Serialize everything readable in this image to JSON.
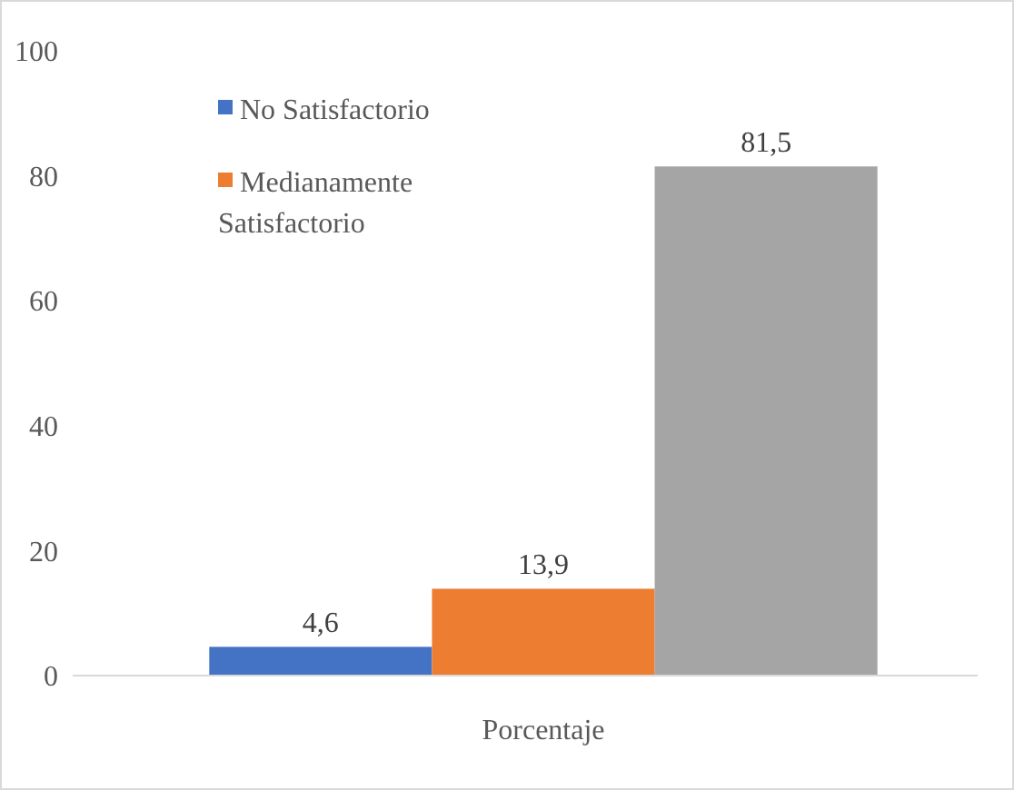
{
  "chart_data": {
    "type": "bar",
    "categories": [
      "Porcentaje"
    ],
    "series": [
      {
        "name": "No Satisfactorio",
        "color": "#4472c4",
        "values": [
          4.6
        ]
      },
      {
        "name": "Medianamente Satisfactorio",
        "color": "#ed7d31",
        "values": [
          13.9
        ]
      },
      {
        "color": "#a5a5a5",
        "values": [
          81.5
        ]
      }
    ],
    "ylim": [
      0,
      100
    ],
    "yticks": [
      0,
      20,
      40,
      60,
      80,
      100
    ],
    "grid": false,
    "legend": "top left",
    "value_labels": [
      [
        "4,6"
      ],
      [
        "13,9"
      ],
      [
        "81,5"
      ]
    ]
  }
}
